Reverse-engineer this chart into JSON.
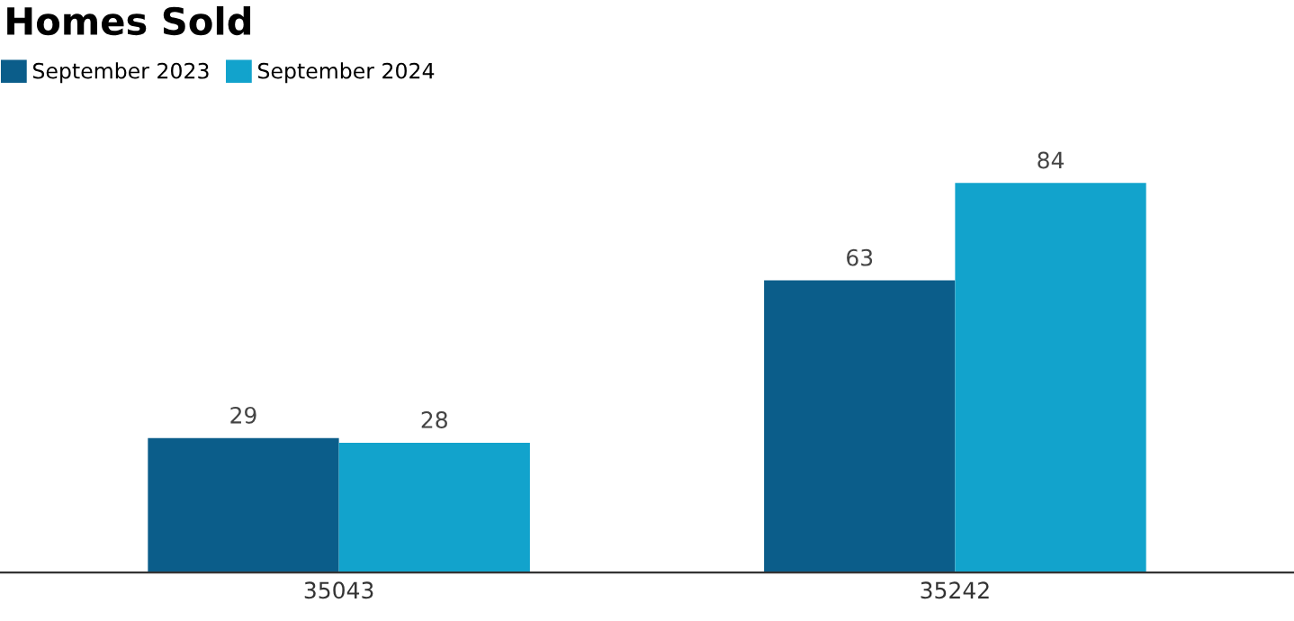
{
  "chart_data": {
    "type": "bar",
    "title": "Homes Sold",
    "categories": [
      "35043",
      "35242"
    ],
    "series": [
      {
        "name": "September 2023",
        "color": "#0b5d8a",
        "values": [
          29,
          63
        ]
      },
      {
        "name": "September 2024",
        "color": "#12a3cc",
        "values": [
          28,
          84
        ]
      }
    ],
    "data_labels": true,
    "legend": "top left",
    "grid": false
  }
}
